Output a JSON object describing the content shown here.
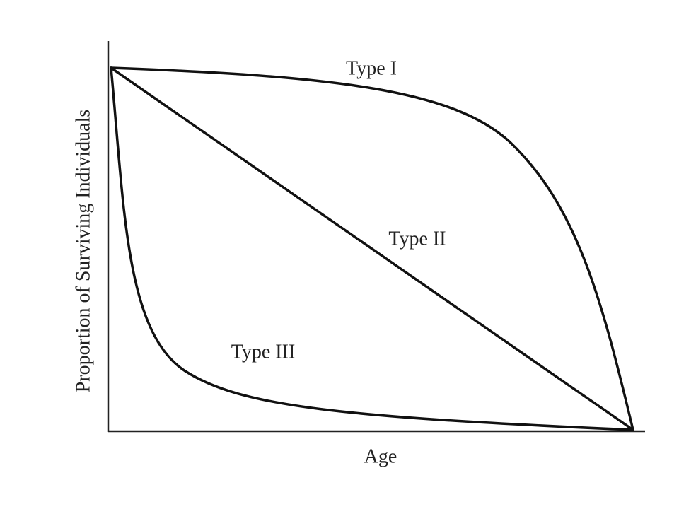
{
  "axes": {
    "x_label": "Age",
    "y_label": "Proportion of Surviving Individuals"
  },
  "curves": [
    {
      "label": "Type I"
    },
    {
      "label": "Type II"
    },
    {
      "label": "Type III"
    }
  ]
}
